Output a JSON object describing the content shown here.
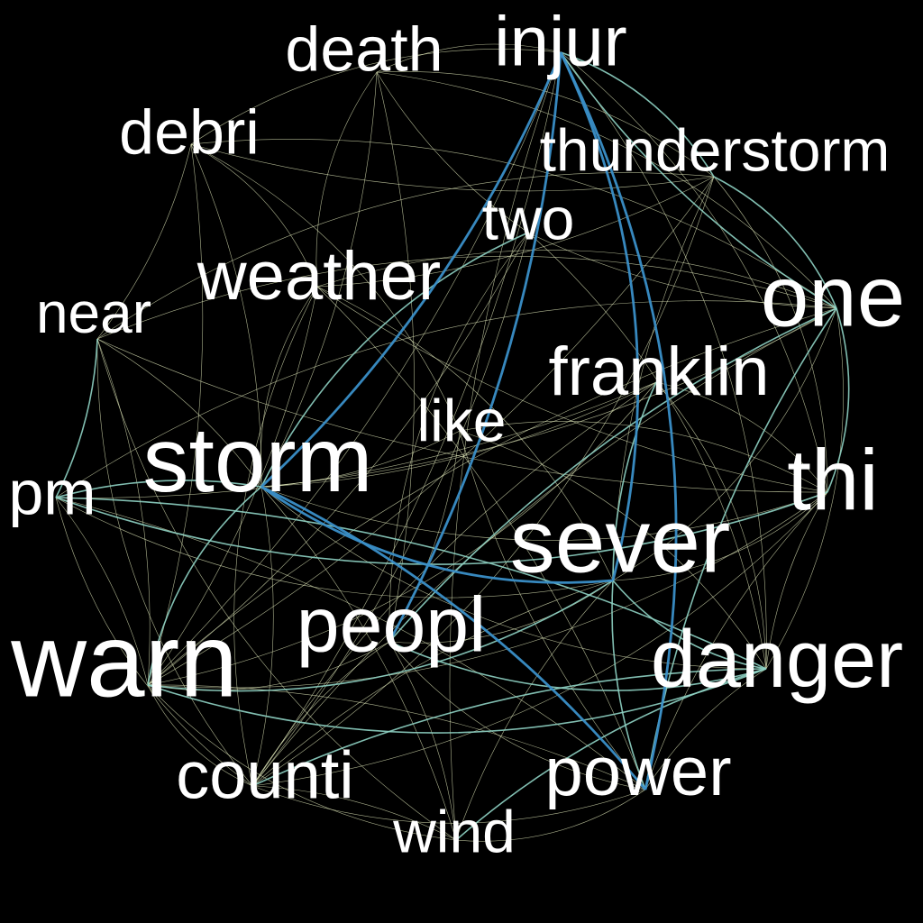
{
  "colors": {
    "background": "#000000",
    "word": "#ffffff",
    "edge_weak": "#e8f0c0",
    "edge_mid": "#8fd3c4",
    "edge_strong": "#3a8fc8"
  },
  "chart_data": {
    "type": "word-cooccurrence-network",
    "nodes": [
      {
        "id": "injur",
        "weight": 0.62
      },
      {
        "id": "death",
        "weight": 0.55
      },
      {
        "id": "debri",
        "weight": 0.55
      },
      {
        "id": "thunderstorm",
        "weight": 0.5
      },
      {
        "id": "two",
        "weight": 0.52
      },
      {
        "id": "weather",
        "weight": 0.58
      },
      {
        "id": "near",
        "weight": 0.5
      },
      {
        "id": "one",
        "weight": 0.85
      },
      {
        "id": "franklin",
        "weight": 0.58
      },
      {
        "id": "like",
        "weight": 0.5
      },
      {
        "id": "storm",
        "weight": 0.92
      },
      {
        "id": "pm",
        "weight": 0.5
      },
      {
        "id": "thi",
        "weight": 0.8
      },
      {
        "id": "sever",
        "weight": 0.92
      },
      {
        "id": "peopl",
        "weight": 0.75
      },
      {
        "id": "warn",
        "weight": 1.0
      },
      {
        "id": "danger",
        "weight": 0.78
      },
      {
        "id": "counti",
        "weight": 0.62
      },
      {
        "id": "power",
        "weight": 0.62
      },
      {
        "id": "wind",
        "weight": 0.52
      }
    ],
    "edges": [
      {
        "source": "injur",
        "target": "sever",
        "strength": "strong"
      },
      {
        "source": "injur",
        "target": "storm",
        "strength": "strong"
      },
      {
        "source": "injur",
        "target": "power",
        "strength": "strong"
      },
      {
        "source": "injur",
        "target": "peopl",
        "strength": "strong"
      },
      {
        "source": "storm",
        "target": "sever",
        "strength": "strong"
      },
      {
        "source": "storm",
        "target": "power",
        "strength": "strong"
      },
      {
        "source": "storm",
        "target": "warn",
        "strength": "mid"
      },
      {
        "source": "storm",
        "target": "pm",
        "strength": "mid"
      },
      {
        "source": "sever",
        "target": "warn",
        "strength": "mid"
      },
      {
        "source": "sever",
        "target": "power",
        "strength": "mid"
      },
      {
        "source": "sever",
        "target": "danger",
        "strength": "mid"
      },
      {
        "source": "injur",
        "target": "one",
        "strength": "mid"
      },
      {
        "source": "injur",
        "target": "thunderstorm",
        "strength": "mid"
      },
      {
        "source": "peopl",
        "target": "one",
        "strength": "mid"
      },
      {
        "source": "peopl",
        "target": "danger",
        "strength": "mid"
      },
      {
        "source": "pm",
        "target": "danger",
        "strength": "mid"
      },
      {
        "source": "pm",
        "target": "thi",
        "strength": "mid"
      },
      {
        "source": "near",
        "target": "pm",
        "strength": "mid"
      },
      {
        "source": "warn",
        "target": "danger",
        "strength": "mid"
      },
      {
        "source": "counti",
        "target": "danger",
        "strength": "mid"
      },
      {
        "source": "one",
        "target": "thi",
        "strength": "mid"
      },
      {
        "source": "one",
        "target": "power",
        "strength": "mid"
      },
      {
        "source": "thunderstorm",
        "target": "one",
        "strength": "mid"
      },
      {
        "source": "franklin",
        "target": "sever",
        "strength": "mid"
      },
      {
        "source": "two",
        "target": "storm",
        "strength": "mid"
      },
      {
        "source": "wind",
        "target": "danger",
        "strength": "mid"
      },
      {
        "source": "death",
        "target": "injur",
        "strength": "weak"
      },
      {
        "source": "death",
        "target": "storm",
        "strength": "weak"
      },
      {
        "source": "death",
        "target": "one",
        "strength": "weak"
      },
      {
        "source": "death",
        "target": "two",
        "strength": "weak"
      },
      {
        "source": "death",
        "target": "weather",
        "strength": "weak"
      },
      {
        "source": "death",
        "target": "peopl",
        "strength": "weak"
      },
      {
        "source": "death",
        "target": "thunderstorm",
        "strength": "weak"
      },
      {
        "source": "debri",
        "target": "storm",
        "strength": "weak"
      },
      {
        "source": "debri",
        "target": "weather",
        "strength": "weak"
      },
      {
        "source": "debri",
        "target": "thunderstorm",
        "strength": "weak"
      },
      {
        "source": "debri",
        "target": "one",
        "strength": "weak"
      },
      {
        "source": "debri",
        "target": "warn",
        "strength": "weak"
      },
      {
        "source": "debri",
        "target": "injur",
        "strength": "weak"
      },
      {
        "source": "debri",
        "target": "near",
        "strength": "weak"
      },
      {
        "source": "debri",
        "target": "like",
        "strength": "weak"
      },
      {
        "source": "thunderstorm",
        "target": "warn",
        "strength": "weak"
      },
      {
        "source": "thunderstorm",
        "target": "near",
        "strength": "weak"
      },
      {
        "source": "thunderstorm",
        "target": "weather",
        "strength": "weak"
      },
      {
        "source": "thunderstorm",
        "target": "counti",
        "strength": "weak"
      },
      {
        "source": "thunderstorm",
        "target": "sever",
        "strength": "weak"
      },
      {
        "source": "thunderstorm",
        "target": "thi",
        "strength": "weak"
      },
      {
        "source": "two",
        "target": "one",
        "strength": "weak"
      },
      {
        "source": "two",
        "target": "peopl",
        "strength": "weak"
      },
      {
        "source": "two",
        "target": "warn",
        "strength": "weak"
      },
      {
        "source": "two",
        "target": "danger",
        "strength": "weak"
      },
      {
        "source": "two",
        "target": "counti",
        "strength": "weak"
      },
      {
        "source": "weather",
        "target": "storm",
        "strength": "weak"
      },
      {
        "source": "weather",
        "target": "warn",
        "strength": "weak"
      },
      {
        "source": "weather",
        "target": "sever",
        "strength": "weak"
      },
      {
        "source": "weather",
        "target": "thi",
        "strength": "weak"
      },
      {
        "source": "weather",
        "target": "one",
        "strength": "weak"
      },
      {
        "source": "weather",
        "target": "power",
        "strength": "weak"
      },
      {
        "source": "weather",
        "target": "counti",
        "strength": "weak"
      },
      {
        "source": "near",
        "target": "warn",
        "strength": "weak"
      },
      {
        "source": "near",
        "target": "counti",
        "strength": "weak"
      },
      {
        "source": "near",
        "target": "storm",
        "strength": "weak"
      },
      {
        "source": "near",
        "target": "one",
        "strength": "weak"
      },
      {
        "source": "near",
        "target": "thi",
        "strength": "weak"
      },
      {
        "source": "near",
        "target": "wind",
        "strength": "weak"
      },
      {
        "source": "one",
        "target": "storm",
        "strength": "weak"
      },
      {
        "source": "one",
        "target": "sever",
        "strength": "weak"
      },
      {
        "source": "one",
        "target": "warn",
        "strength": "weak"
      },
      {
        "source": "one",
        "target": "danger",
        "strength": "weak"
      },
      {
        "source": "one",
        "target": "counti",
        "strength": "weak"
      },
      {
        "source": "one",
        "target": "pm",
        "strength": "weak"
      },
      {
        "source": "franklin",
        "target": "storm",
        "strength": "weak"
      },
      {
        "source": "franklin",
        "target": "warn",
        "strength": "weak"
      },
      {
        "source": "franklin",
        "target": "counti",
        "strength": "weak"
      },
      {
        "source": "franklin",
        "target": "thi",
        "strength": "weak"
      },
      {
        "source": "franklin",
        "target": "pm",
        "strength": "weak"
      },
      {
        "source": "franklin",
        "target": "danger",
        "strength": "weak"
      },
      {
        "source": "like",
        "target": "storm",
        "strength": "weak"
      },
      {
        "source": "like",
        "target": "thi",
        "strength": "weak"
      },
      {
        "source": "like",
        "target": "peopl",
        "strength": "weak"
      },
      {
        "source": "like",
        "target": "danger",
        "strength": "weak"
      },
      {
        "source": "like",
        "target": "power",
        "strength": "weak"
      },
      {
        "source": "storm",
        "target": "thi",
        "strength": "weak"
      },
      {
        "source": "storm",
        "target": "counti",
        "strength": "weak"
      },
      {
        "source": "storm",
        "target": "danger",
        "strength": "weak"
      },
      {
        "source": "storm",
        "target": "wind",
        "strength": "weak"
      },
      {
        "source": "pm",
        "target": "sever",
        "strength": "weak"
      },
      {
        "source": "pm",
        "target": "warn",
        "strength": "weak"
      },
      {
        "source": "pm",
        "target": "counti",
        "strength": "weak"
      },
      {
        "source": "pm",
        "target": "power",
        "strength": "weak"
      },
      {
        "source": "thi",
        "target": "warn",
        "strength": "weak"
      },
      {
        "source": "thi",
        "target": "danger",
        "strength": "weak"
      },
      {
        "source": "thi",
        "target": "counti",
        "strength": "weak"
      },
      {
        "source": "thi",
        "target": "power",
        "strength": "weak"
      },
      {
        "source": "thi",
        "target": "sever",
        "strength": "weak"
      },
      {
        "source": "sever",
        "target": "counti",
        "strength": "weak"
      },
      {
        "source": "sever",
        "target": "peopl",
        "strength": "weak"
      },
      {
        "source": "sever",
        "target": "wind",
        "strength": "weak"
      },
      {
        "source": "peopl",
        "target": "warn",
        "strength": "weak"
      },
      {
        "source": "peopl",
        "target": "counti",
        "strength": "weak"
      },
      {
        "source": "peopl",
        "target": "power",
        "strength": "weak"
      },
      {
        "source": "peopl",
        "target": "wind",
        "strength": "weak"
      },
      {
        "source": "warn",
        "target": "counti",
        "strength": "weak"
      },
      {
        "source": "warn",
        "target": "power",
        "strength": "weak"
      },
      {
        "source": "warn",
        "target": "wind",
        "strength": "weak"
      },
      {
        "source": "danger",
        "target": "power",
        "strength": "weak"
      },
      {
        "source": "counti",
        "target": "power",
        "strength": "weak"
      },
      {
        "source": "counti",
        "target": "wind",
        "strength": "weak"
      },
      {
        "source": "power",
        "target": "wind",
        "strength": "weak"
      },
      {
        "source": "injur",
        "target": "warn",
        "strength": "weak"
      },
      {
        "source": "injur",
        "target": "danger",
        "strength": "weak"
      },
      {
        "source": "injur",
        "target": "counti",
        "strength": "weak"
      },
      {
        "source": "injur",
        "target": "thi",
        "strength": "weak"
      },
      {
        "source": "injur",
        "target": "wind",
        "strength": "weak"
      }
    ]
  }
}
